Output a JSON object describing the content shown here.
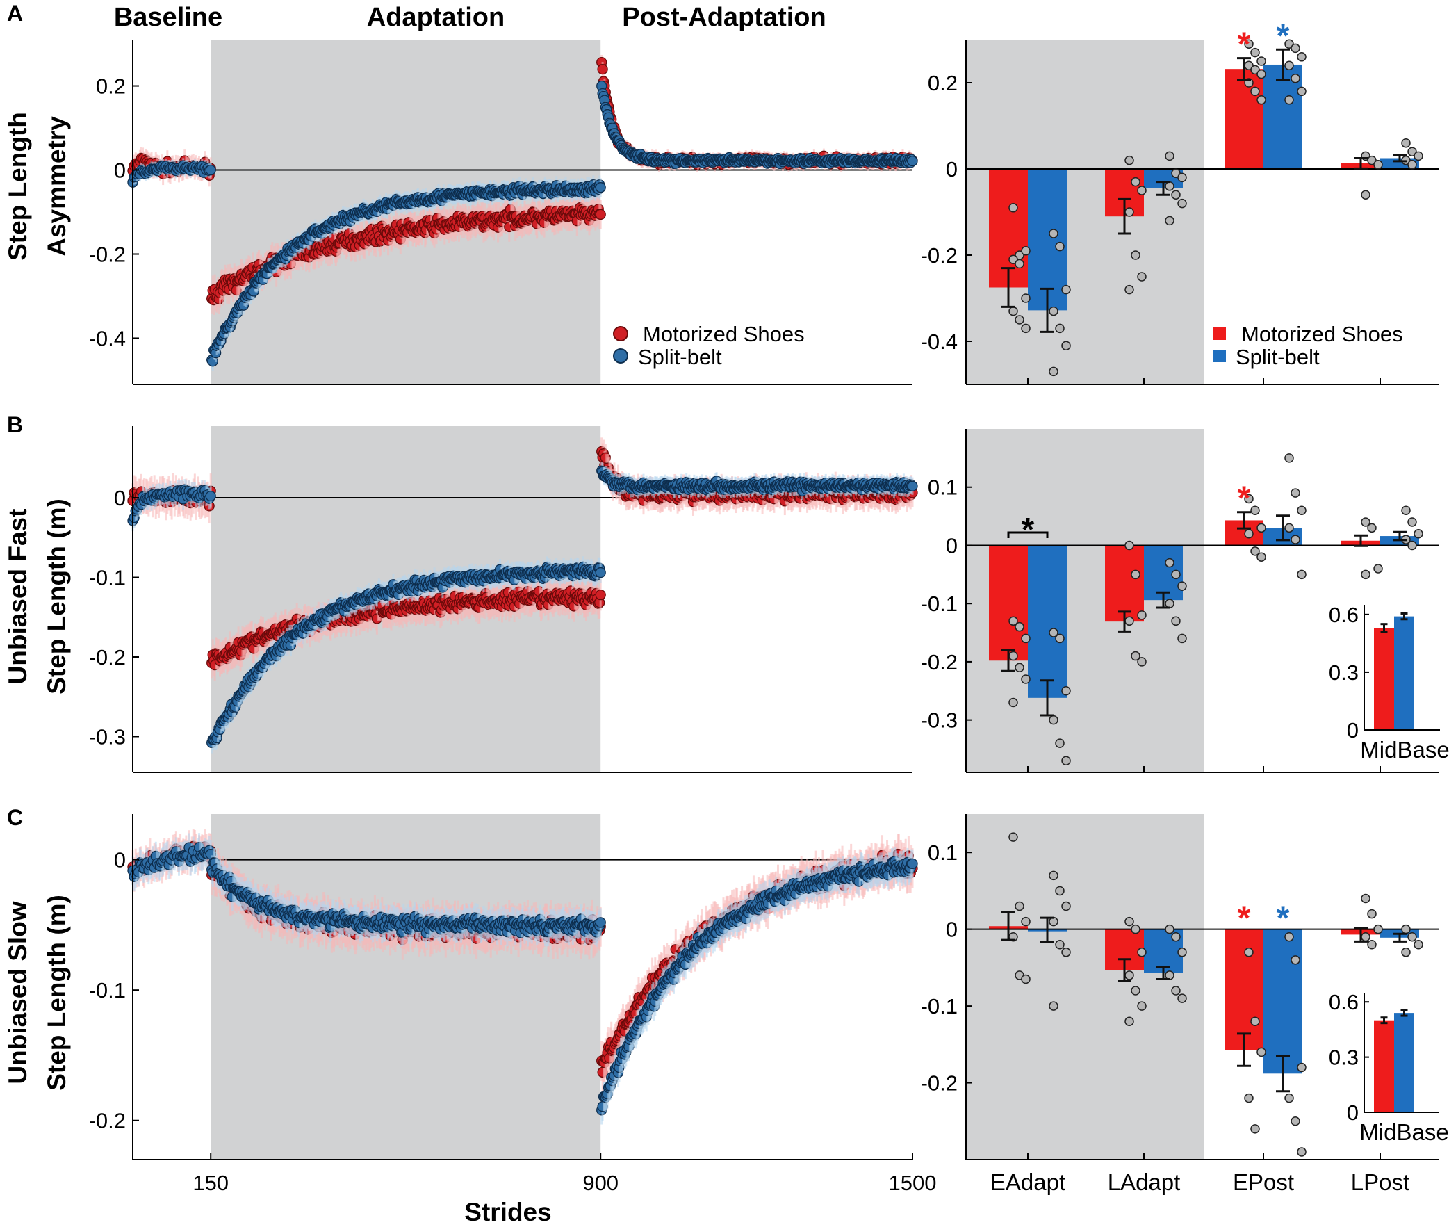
{
  "colors": {
    "motorized": "#ee1c1c",
    "motorized_dot": "#d01f25",
    "motorized_edge": "#6a0a0a",
    "split": "#1f6fbf",
    "split_dot": "#2f6ea6",
    "split_edge": "#0d2d4d",
    "shade": "#d1d2d3",
    "points": "#b5b5b5"
  },
  "panel_labels": [
    "A",
    "B",
    "C"
  ],
  "phases": [
    "Baseline",
    "Adaptation",
    "Post-Adaptation"
  ],
  "x_label": "Strides",
  "x_ticks": [
    "150",
    "900",
    "1500"
  ],
  "legend": {
    "motorized": "Motorized Shoes",
    "split": "Split-belt"
  },
  "inset_label": "MidBase",
  "chart_data": [
    {
      "id": "A-time",
      "type": "scatter",
      "ylabel": [
        "Step Length",
        "Asymmetry"
      ],
      "xlim": [
        0,
        1500
      ],
      "ylim": [
        -0.51,
        0.31
      ],
      "yticks": [
        0.2,
        0,
        -0.2,
        -0.4
      ],
      "ytick_labels": [
        "0.2",
        "0",
        "-0.2",
        "-0.4"
      ],
      "shade_x": [
        150,
        900
      ],
      "xaxis_visible": false,
      "series": [
        {
          "name": "Motorized Shoes",
          "segments": [
            {
              "x0": 0,
              "x1": 150,
              "n": 55,
              "y0": 0.0,
              "y1": 0.005,
              "tau": 0.3,
              "noise": 0.012,
              "bump": 0.02
            },
            {
              "x0": 152,
              "x1": 900,
              "n": 380,
              "y0": -0.3,
              "y1": -0.105,
              "tau": 0.35,
              "noise": 0.016
            },
            {
              "x0": 902,
              "x1": 1500,
              "n": 320,
              "y0": 0.255,
              "y1": 0.022,
              "tau": 0.035,
              "noise": 0.008
            }
          ]
        },
        {
          "name": "Split-belt",
          "segments": [
            {
              "x0": 0,
              "x1": 150,
              "n": 55,
              "y0": -0.025,
              "y1": 0.005,
              "tau": 0.1,
              "noise": 0.008
            },
            {
              "x0": 152,
              "x1": 900,
              "n": 380,
              "y0": -0.45,
              "y1": -0.045,
              "tau": 0.2,
              "noise": 0.01
            },
            {
              "x0": 902,
              "x1": 1500,
              "n": 320,
              "y0": 0.2,
              "y1": 0.022,
              "tau": 0.04,
              "noise": 0.006
            }
          ]
        }
      ]
    },
    {
      "id": "B-time",
      "type": "scatter",
      "ylabel": [
        "Unbiased Fast",
        "Step Length (m)"
      ],
      "xlim": [
        0,
        1500
      ],
      "ylim": [
        -0.345,
        0.09
      ],
      "yticks": [
        0,
        -0.1,
        -0.2,
        -0.3
      ],
      "ytick_labels": [
        "0",
        "-0.1",
        "-0.2",
        "-0.3"
      ],
      "shade_x": [
        150,
        900
      ],
      "xaxis_visible": false,
      "series": [
        {
          "name": "Motorized Shoes",
          "segments": [
            {
              "x0": 0,
              "x1": 150,
              "n": 55,
              "y0": 0.005,
              "y1": 0.0,
              "tau": 0.3,
              "noise": 0.01
            },
            {
              "x0": 152,
              "x1": 900,
              "n": 380,
              "y0": -0.205,
              "y1": -0.125,
              "tau": 0.3,
              "noise": 0.009
            },
            {
              "x0": 902,
              "x1": 1500,
              "n": 320,
              "y0": 0.06,
              "y1": 0.005,
              "tau": 0.03,
              "noise": 0.008
            }
          ]
        },
        {
          "name": "Split-belt",
          "segments": [
            {
              "x0": 0,
              "x1": 150,
              "n": 55,
              "y0": -0.03,
              "y1": 0.005,
              "tau": 0.1,
              "noise": 0.006
            },
            {
              "x0": 152,
              "x1": 900,
              "n": 380,
              "y0": -0.31,
              "y1": -0.092,
              "tau": 0.22,
              "noise": 0.006
            },
            {
              "x0": 902,
              "x1": 1500,
              "n": 320,
              "y0": 0.035,
              "y1": 0.015,
              "tau": 0.03,
              "noise": 0.005
            }
          ]
        }
      ]
    },
    {
      "id": "C-time",
      "type": "scatter",
      "ylabel": [
        "Unbiased Slow",
        "Step Length (m)"
      ],
      "xlim": [
        0,
        1500
      ],
      "ylim": [
        -0.23,
        0.035
      ],
      "yticks": [
        0,
        -0.1,
        -0.2
      ],
      "ytick_labels": [
        "0",
        "-0.1",
        "-0.2"
      ],
      "shade_x": [
        150,
        900
      ],
      "xaxis_visible": true,
      "xticks": [
        150,
        900,
        1500
      ],
      "series": [
        {
          "name": "Motorized Shoes",
          "segments": [
            {
              "x0": 0,
              "x1": 150,
              "n": 55,
              "y0": -0.01,
              "y1": 0.008,
              "tau": 0.5,
              "noise": 0.006
            },
            {
              "x0": 152,
              "x1": 900,
              "n": 380,
              "y0": -0.005,
              "y1": -0.053,
              "tau": 0.12,
              "noise": 0.007
            },
            {
              "x0": 902,
              "x1": 1500,
              "n": 320,
              "y0": -0.16,
              "y1": -0.003,
              "tau": 0.35,
              "noise": 0.007
            }
          ]
        },
        {
          "name": "Split-belt",
          "segments": [
            {
              "x0": 0,
              "x1": 150,
              "n": 55,
              "y0": -0.01,
              "y1": 0.005,
              "tau": 0.5,
              "noise": 0.005
            },
            {
              "x0": 152,
              "x1": 900,
              "n": 380,
              "y0": -0.005,
              "y1": -0.05,
              "tau": 0.12,
              "noise": 0.005
            },
            {
              "x0": 902,
              "x1": 1500,
              "n": 320,
              "y0": -0.19,
              "y1": -0.005,
              "tau": 0.3,
              "noise": 0.005
            }
          ]
        }
      ]
    },
    {
      "id": "A-bar",
      "type": "bar",
      "categories": [
        "EAdapt",
        "LAdapt",
        "EPost",
        "LPost"
      ],
      "show_categories": false,
      "ylim": [
        -0.5,
        0.3
      ],
      "yticks": [
        0.2,
        0,
        -0.2,
        -0.4
      ],
      "ytick_labels": [
        "0.2",
        "0",
        "-0.2",
        "-0.4"
      ],
      "shade_categories": 2,
      "series": [
        {
          "name": "Motorized Shoes",
          "values": [
            -0.275,
            -0.11,
            0.232,
            0.013
          ],
          "err": [
            0.045,
            0.04,
            0.025,
            0.012
          ]
        },
        {
          "name": "Split-belt",
          "values": [
            -0.328,
            -0.045,
            0.242,
            0.025
          ],
          "err": [
            0.05,
            0.015,
            0.035,
            0.007
          ]
        }
      ],
      "points": [
        [
          [
            -0.09,
            -0.2,
            -0.19,
            -0.21,
            -0.22,
            -0.3,
            -0.33,
            -0.35,
            -0.37
          ],
          [
            0.02,
            -0.03,
            -0.05,
            -0.1,
            -0.2,
            -0.25,
            -0.28
          ],
          [
            0.29,
            0.27,
            0.25,
            0.24,
            0.23,
            0.22,
            0.2,
            0.18,
            0.16
          ],
          [
            0.03,
            0.02,
            0.01,
            -0.06
          ]
        ],
        [
          [
            -0.15,
            -0.18,
            -0.28,
            -0.33,
            -0.37,
            -0.41,
            -0.47
          ],
          [
            0.03,
            -0.01,
            -0.02,
            -0.04,
            -0.06,
            -0.08,
            -0.12
          ],
          [
            0.29,
            0.28,
            0.26,
            0.24,
            0.21,
            0.18,
            0.16
          ],
          [
            0.06,
            0.04,
            0.03,
            0.02,
            0.01
          ]
        ]
      ],
      "stars": [
        {
          "category": 2,
          "series": 0,
          "text": "*"
        },
        {
          "category": 2,
          "series": 1,
          "text": "*"
        }
      ]
    },
    {
      "id": "B-bar",
      "type": "bar",
      "categories": [
        "EAdapt",
        "LAdapt",
        "EPost",
        "LPost"
      ],
      "show_categories": false,
      "ylim": [
        -0.39,
        0.2
      ],
      "yticks": [
        0.1,
        0,
        -0.1,
        -0.2,
        -0.3
      ],
      "ytick_labels": [
        "0.1",
        "0",
        "-0.1",
        "-0.2",
        "-0.3"
      ],
      "shade_categories": 2,
      "series": [
        {
          "name": "Motorized Shoes",
          "values": [
            -0.198,
            -0.131,
            0.043,
            0.008
          ],
          "err": [
            0.018,
            0.017,
            0.014,
            0.009
          ]
        },
        {
          "name": "Split-belt",
          "values": [
            -0.262,
            -0.094,
            0.03,
            0.016
          ],
          "err": [
            0.03,
            0.013,
            0.021,
            0.007
          ]
        }
      ],
      "points": [
        [
          [
            -0.13,
            -0.14,
            -0.16,
            -0.19,
            -0.21,
            -0.23,
            -0.27
          ],
          [
            0.0,
            -0.05,
            -0.12,
            -0.13,
            -0.19,
            -0.2
          ],
          [
            0.08,
            0.06,
            0.03,
            0.02,
            -0.01,
            -0.02
          ],
          [
            0.04,
            0.03,
            -0.04,
            -0.05
          ]
        ],
        [
          [
            -0.15,
            -0.16,
            -0.25,
            -0.3,
            -0.34,
            -0.37
          ],
          [
            -0.03,
            -0.05,
            -0.07,
            -0.1,
            -0.13,
            -0.16
          ],
          [
            0.15,
            0.09,
            0.06,
            0.03,
            0.01,
            -0.05
          ],
          [
            0.06,
            0.04,
            0.02,
            0.01,
            0.0
          ]
        ]
      ],
      "bracket": {
        "from": [
          0,
          0
        ],
        "to": [
          0,
          1
        ],
        "y": 0.022,
        "text": "*"
      },
      "stars": [
        {
          "category": 2,
          "series": 0,
          "text": "*"
        }
      ],
      "inset": {
        "label": "MidBase",
        "ylim": [
          0,
          0.65
        ],
        "yticks": [
          0,
          0.3,
          0.6
        ],
        "ytick_labels": [
          "0",
          "0.3",
          "0.6"
        ],
        "values": [
          0.53,
          0.59
        ],
        "err": [
          0.02,
          0.015
        ]
      }
    },
    {
      "id": "C-bar",
      "type": "bar",
      "categories": [
        "EAdapt",
        "LAdapt",
        "EPost",
        "LPost"
      ],
      "show_categories": true,
      "ylim": [
        -0.3,
        0.15
      ],
      "yticks": [
        0.1,
        0,
        -0.1,
        -0.2
      ],
      "ytick_labels": [
        "0.1",
        "0",
        "-0.1",
        "-0.2"
      ],
      "shade_categories": 2,
      "series": [
        {
          "name": "Motorized Shoes",
          "values": [
            0.004,
            -0.053,
            -0.157,
            -0.007
          ],
          "err": [
            0.018,
            0.014,
            0.021,
            0.009
          ]
        },
        {
          "name": "Split-belt",
          "values": [
            -0.001,
            -0.057,
            -0.188,
            -0.011
          ],
          "err": [
            0.016,
            0.008,
            0.023,
            0.005
          ]
        }
      ],
      "points": [
        [
          [
            0.12,
            0.03,
            0.01,
            -0.01,
            -0.06,
            -0.065
          ],
          [
            0.01,
            0.0,
            -0.03,
            -0.06,
            -0.08,
            -0.1,
            -0.12
          ],
          [
            -0.03,
            -0.12,
            -0.16,
            -0.22,
            -0.26
          ],
          [
            0.04,
            0.02,
            0.0,
            -0.01,
            -0.02
          ]
        ],
        [
          [
            0.07,
            0.05,
            0.03,
            0.01,
            -0.02,
            -0.03,
            -0.1
          ],
          [
            0.0,
            -0.01,
            -0.03,
            -0.06,
            -0.08,
            -0.09
          ],
          [
            -0.01,
            -0.04,
            -0.18,
            -0.22,
            -0.25,
            -0.29
          ],
          [
            0.0,
            -0.01,
            -0.02,
            -0.03
          ]
        ]
      ],
      "stars": [
        {
          "category": 2,
          "series": 0,
          "text": "*",
          "pos": "above_axis"
        },
        {
          "category": 2,
          "series": 1,
          "text": "*",
          "pos": "above_axis"
        }
      ],
      "inset": {
        "label": "MidBase",
        "ylim": [
          0,
          0.65
        ],
        "yticks": [
          0,
          0.3,
          0.6
        ],
        "ytick_labels": [
          "0",
          "0.3",
          "0.6"
        ],
        "values": [
          0.5,
          0.54
        ],
        "err": [
          0.015,
          0.015
        ]
      }
    }
  ]
}
